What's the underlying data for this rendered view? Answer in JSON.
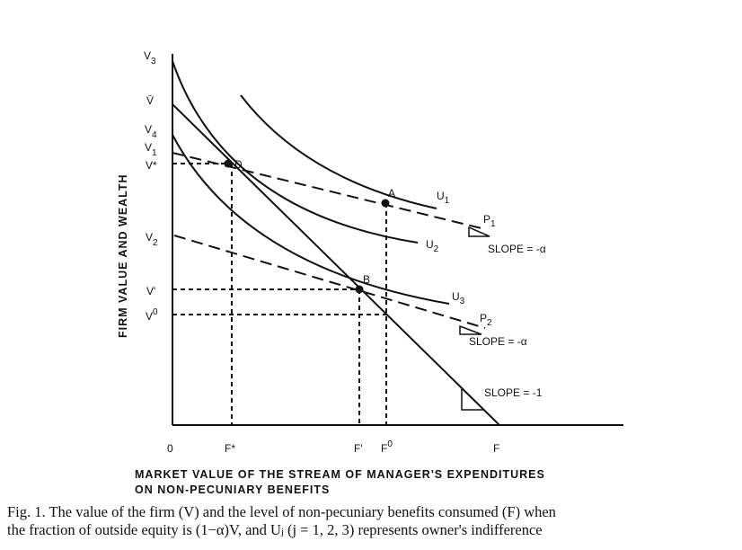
{
  "figure": {
    "y_axis_label": "FIRM VALUE AND WEALTH",
    "x_axis_label_line1": "MARKET VALUE OF THE STREAM OF MANAGER'S EXPENDITURES",
    "x_axis_label_line2": "ON NON-PECUNIARY BENEFITS",
    "y_ticks": {
      "V3": "V",
      "V3_sub": "3",
      "Vbar": "V̄",
      "V4": "V",
      "V4_sub": "4",
      "V1": "V",
      "V1_sub": "1",
      "Vstar": "V*",
      "V2": "V",
      "V2_sub": "2",
      "Vprime": "V'",
      "V0": "V",
      "V0_sup": "0"
    },
    "x_ticks": {
      "origin": "0",
      "Fstar": "F*",
      "Fprime": "F'",
      "F0": "F",
      "F0_sup": "0",
      "F": "F"
    },
    "points": {
      "D": "D",
      "A": "A",
      "B": "B"
    },
    "curves": {
      "U1": "U",
      "U1_sub": "1",
      "U2": "U",
      "U2_sub": "2",
      "U3": "U",
      "U3_sub": "3",
      "P1": "P",
      "P1_sub": "1",
      "P2": "P",
      "P2_sub": "2"
    },
    "slopes": {
      "slope_alpha_1": "SLOPE = -α",
      "slope_alpha_2": "SLOPE = -α",
      "slope_one": "SLOPE = -1"
    }
  },
  "caption": {
    "line1": "Fig. 1. The value of the firm (V) and the level of non-pecuniary benefits consumed (F) when",
    "line2": "the fraction of outside equity is (1−α)V, and Uⱼ (j = 1, 2, 3) represents owner's indifference"
  }
}
